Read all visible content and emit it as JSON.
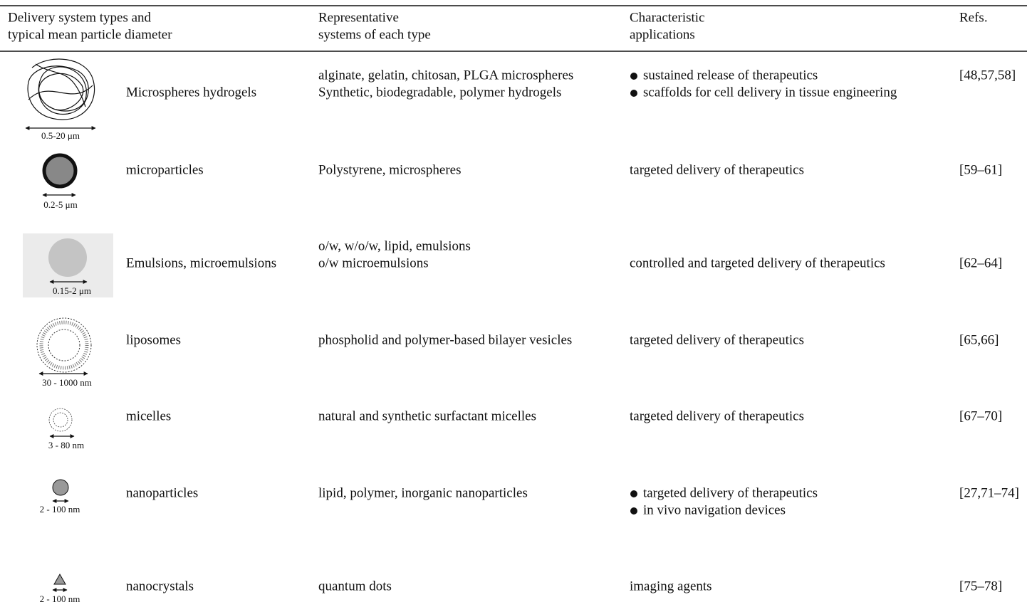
{
  "table": {
    "headers": [
      [
        "Delivery system types and",
        "typical mean particle diameter"
      ],
      [
        "Representative",
        "systems of each type"
      ],
      [
        "Characteristic",
        "applications"
      ],
      [
        "Refs."
      ]
    ],
    "rows": [
      {
        "size": "0.5-20 μm",
        "type": "Microspheres hydrogels",
        "systems": [
          "alginate, gelatin, chitosan, PLGA microspheres",
          "Synthetic, biodegradable, polymer hydrogels"
        ],
        "applications": [
          "sustained release of therapeutics",
          "scaffolds for cell delivery in tissue engineering"
        ],
        "refs": "[48,57,58]"
      },
      {
        "size": "0.2-5 μm",
        "type": "microparticles",
        "systems": [
          "Polystyrene, microspheres"
        ],
        "applications": [
          "targeted delivery of therapeutics"
        ],
        "refs": "[59–61]"
      },
      {
        "size": "0.15-2 μm",
        "type": "Emulsions, microemulsions",
        "systems": [
          "o/w, w/o/w, lipid, emulsions",
          "o/w microemulsions"
        ],
        "applications": [
          "controlled and targeted delivery of therapeutics"
        ],
        "refs": "[62–64]"
      },
      {
        "size": "30 - 1000 nm",
        "type": "liposomes",
        "systems": [
          "phospholid and polymer-based bilayer vesicles"
        ],
        "applications": [
          "targeted delivery of therapeutics"
        ],
        "refs": "[65,66]"
      },
      {
        "size": "3 - 80 nm",
        "type": "micelles",
        "systems": [
          "natural and synthetic surfactant micelles"
        ],
        "applications": [
          "targeted delivery of therapeutics"
        ],
        "refs": "[67–70]"
      },
      {
        "size": "2 - 100 nm",
        "type": "nanoparticles",
        "systems": [
          "lipid, polymer, inorganic nanoparticles"
        ],
        "applications": [
          "targeted delivery of therapeutics",
          "in vivo navigation devices"
        ],
        "refs": "[27,71–74]"
      },
      {
        "size": "2 - 100 nm",
        "type": "nanocrystals",
        "systems": [
          "quantum dots"
        ],
        "applications": [
          "imaging agents"
        ],
        "refs": "[75–78]"
      }
    ]
  }
}
